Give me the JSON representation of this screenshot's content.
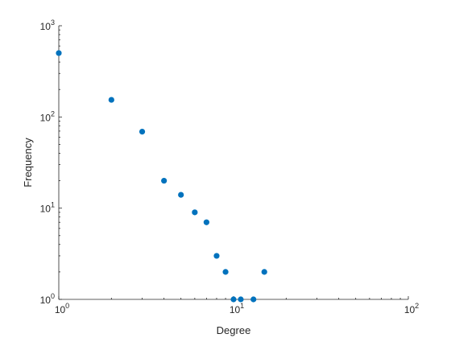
{
  "chart_data": {
    "type": "scatter",
    "title": "",
    "xlabel": "Degree",
    "ylabel": "Frequency",
    "x_scale": "log",
    "y_scale": "log",
    "xlim": [
      1,
      100
    ],
    "ylim": [
      1,
      1000
    ],
    "grid": false,
    "marker_color": "#0072BD",
    "x_ticks": [
      {
        "value": 1,
        "base": "10",
        "exp": "0"
      },
      {
        "value": 10,
        "base": "10",
        "exp": "1"
      },
      {
        "value": 100,
        "base": "10",
        "exp": "2"
      }
    ],
    "y_ticks": [
      {
        "value": 1,
        "base": "10",
        "exp": "0"
      },
      {
        "value": 10,
        "base": "10",
        "exp": "1"
      },
      {
        "value": 100,
        "base": "10",
        "exp": "2"
      },
      {
        "value": 1000,
        "base": "10",
        "exp": "3"
      }
    ],
    "points": [
      {
        "x": 1,
        "y": 502
      },
      {
        "x": 2,
        "y": 154
      },
      {
        "x": 3,
        "y": 69
      },
      {
        "x": 4,
        "y": 20
      },
      {
        "x": 5,
        "y": 14
      },
      {
        "x": 6,
        "y": 9
      },
      {
        "x": 7,
        "y": 7
      },
      {
        "x": 8,
        "y": 3
      },
      {
        "x": 9,
        "y": 2
      },
      {
        "x": 10,
        "y": 1
      },
      {
        "x": 11,
        "y": 1
      },
      {
        "x": 13,
        "y": 1
      },
      {
        "x": 15,
        "y": 2
      }
    ]
  }
}
